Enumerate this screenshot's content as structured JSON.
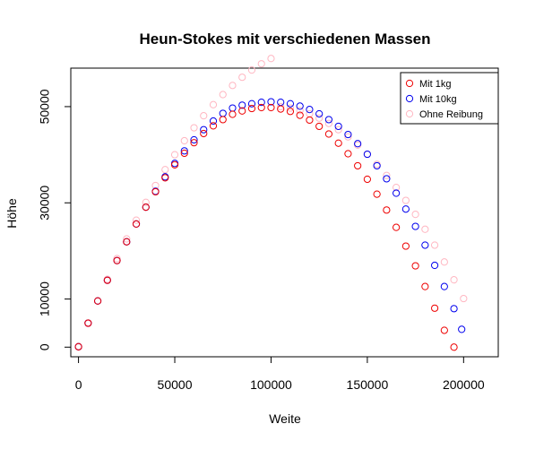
{
  "chart_data": {
    "type": "scatter",
    "title": "Heun-Stokes mit verschiedenen Massen",
    "xlabel": "Weite",
    "ylabel": "Höhe",
    "xlim": [
      -4000,
      218000
    ],
    "ylim": [
      -2000,
      58000
    ],
    "x_ticks": [
      0,
      50000,
      100000,
      150000,
      200000
    ],
    "x_tick_labels": [
      "0",
      "50000",
      "100000",
      "150000",
      "200000"
    ],
    "y_ticks": [
      0,
      10000,
      30000,
      50000
    ],
    "y_tick_labels": [
      "0",
      "10000",
      "30000",
      "50000"
    ],
    "grid": false,
    "legend_position": "top-right",
    "series": [
      {
        "name": "Ohne Reibung",
        "color": "#ffb6c1",
        "x": [
          0,
          5000,
          10000,
          15000,
          20000,
          25000,
          30000,
          35000,
          40000,
          45000,
          50000,
          55000,
          60000,
          65000,
          70000,
          75000,
          80000,
          85000,
          90000,
          95000,
          100000,
          105000,
          110000,
          115000,
          120000,
          125000,
          130000,
          135000,
          140000,
          145000,
          150000,
          155000,
          160000,
          165000,
          170000,
          175000,
          180000,
          185000,
          190000,
          195000,
          200000
        ],
        "y": [
          0,
          4900,
          9600,
          14100,
          18400,
          22500,
          26400,
          30100,
          33600,
          36900,
          40000,
          42900,
          45600,
          48100,
          50400,
          52500,
          54400,
          56100,
          57600,
          58900,
          60000,
          50000,
          49700,
          49200,
          48500,
          47600,
          46500,
          45200,
          43700,
          42000,
          40100,
          38000,
          35700,
          33200,
          30500,
          27600,
          24500,
          21200,
          17700,
          14000,
          10100
        ]
      },
      {
        "name": "Mit 10kg",
        "color": "#0000ee",
        "x": [
          0,
          5000,
          10000,
          15000,
          20000,
          25000,
          30000,
          35000,
          40000,
          45000,
          50000,
          55000,
          60000,
          65000,
          70000,
          75000,
          80000,
          85000,
          90000,
          95000,
          100000,
          105000,
          110000,
          115000,
          120000,
          125000,
          130000,
          135000,
          140000,
          145000,
          150000,
          155000,
          160000,
          165000,
          170000,
          175000,
          180000,
          185000,
          190000,
          195000,
          199000
        ],
        "y": [
          100,
          5000,
          9600,
          13900,
          18000,
          21900,
          25600,
          29100,
          32400,
          35400,
          38200,
          40800,
          43100,
          45200,
          47000,
          48600,
          49700,
          50300,
          50600,
          50900,
          51000,
          50900,
          50600,
          50100,
          49400,
          48500,
          47300,
          45900,
          44200,
          42300,
          40100,
          37700,
          35000,
          32000,
          28700,
          25100,
          21200,
          17000,
          12600,
          8000,
          3700
        ]
      },
      {
        "name": "Mit 1kg",
        "color": "#ee0000",
        "x": [
          0,
          5000,
          10000,
          15000,
          20000,
          25000,
          30000,
          35000,
          40000,
          45000,
          50000,
          55000,
          60000,
          65000,
          70000,
          75000,
          80000,
          85000,
          90000,
          95000,
          100000,
          105000,
          110000,
          115000,
          120000,
          125000,
          130000,
          135000,
          140000,
          145000,
          150000,
          155000,
          160000,
          165000,
          170000,
          175000,
          180000,
          185000,
          190000,
          195000
        ],
        "y": [
          100,
          5000,
          9600,
          13900,
          18000,
          21900,
          25600,
          29100,
          32300,
          35200,
          37900,
          40300,
          42500,
          44400,
          46000,
          47300,
          48400,
          49100,
          49600,
          49800,
          49800,
          49500,
          49000,
          48200,
          47200,
          45900,
          44300,
          42400,
          40200,
          37700,
          34900,
          31800,
          28500,
          24900,
          21000,
          16900,
          12600,
          8100,
          3500,
          0
        ]
      }
    ]
  }
}
